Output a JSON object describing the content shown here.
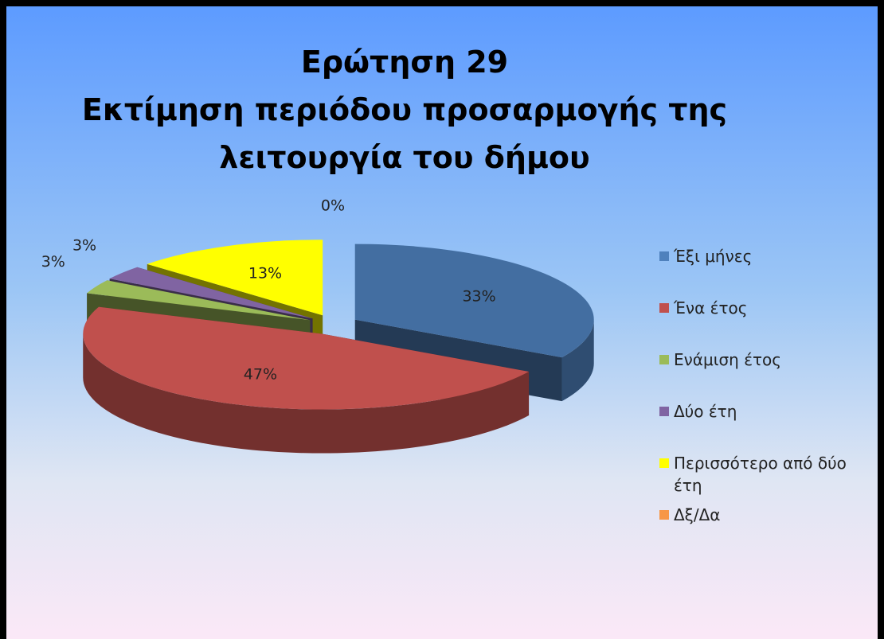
{
  "chart_data": {
    "type": "pie3d",
    "title": "Ερώτηση 29\nΕκτίμηση περιόδου προσαρμογής της\nλειτουργία του δήμου",
    "categories": [
      "Έξι μήνες",
      "Ένα έτος",
      "Ενάμιση έτος",
      "Δύο έτη",
      "Περισσότερο από δύο έτη",
      "Δξ/Δα"
    ],
    "values": [
      33,
      47,
      3,
      3,
      13,
      0
    ],
    "value_labels": [
      "33%",
      "47%",
      "3%",
      "3%",
      "13%",
      "0%"
    ],
    "colors": [
      "#4f81bd",
      "#c0504d",
      "#9bbb59",
      "#8064a2",
      "#ffff00",
      "#f79646"
    ],
    "legend": "right"
  }
}
